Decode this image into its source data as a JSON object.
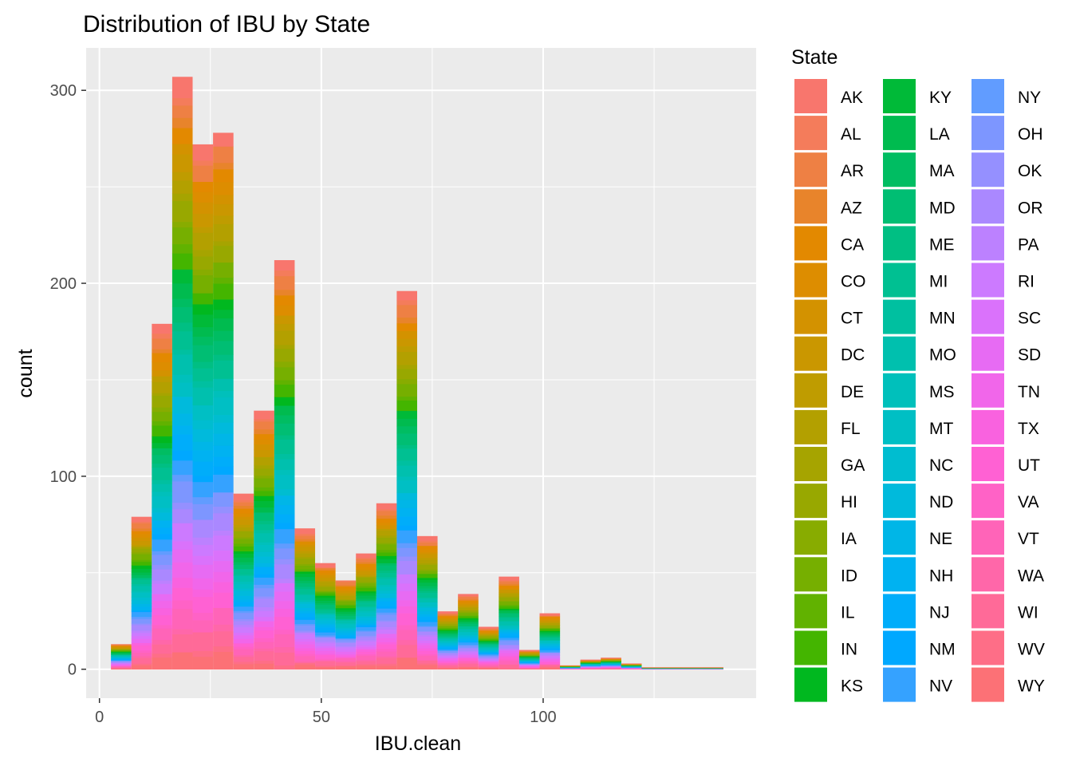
{
  "chart_data": {
    "type": "bar",
    "subtype": "stacked histogram",
    "title": "Distribution of IBU by State",
    "xlabel": "IBU.clean",
    "ylabel": "count",
    "xlim": [
      -3,
      148
    ],
    "ylim": [
      -15,
      322
    ],
    "x_ticks": [
      0,
      50,
      100
    ],
    "y_ticks": [
      0,
      100,
      200,
      300
    ],
    "grid": true,
    "background": "#ebebeb",
    "legend": {
      "title": "State",
      "position": "right",
      "columns": 3
    },
    "bin_width": 4.6,
    "bins": [
      {
        "x0": 2.6,
        "total": 13
      },
      {
        "x0": 7.2,
        "total": 79
      },
      {
        "x0": 11.8,
        "total": 179
      },
      {
        "x0": 16.4,
        "total": 307
      },
      {
        "x0": 21.0,
        "total": 272
      },
      {
        "x0": 25.6,
        "total": 278
      },
      {
        "x0": 30.2,
        "total": 91
      },
      {
        "x0": 34.8,
        "total": 134
      },
      {
        "x0": 39.4,
        "total": 212
      },
      {
        "x0": 44.0,
        "total": 73
      },
      {
        "x0": 48.6,
        "total": 55
      },
      {
        "x0": 53.2,
        "total": 46
      },
      {
        "x0": 57.8,
        "total": 60
      },
      {
        "x0": 62.4,
        "total": 86
      },
      {
        "x0": 67.0,
        "total": 196
      },
      {
        "x0": 71.6,
        "total": 69
      },
      {
        "x0": 76.2,
        "total": 30
      },
      {
        "x0": 80.8,
        "total": 39
      },
      {
        "x0": 85.4,
        "total": 22
      },
      {
        "x0": 90.0,
        "total": 48
      },
      {
        "x0": 94.6,
        "total": 10
      },
      {
        "x0": 99.2,
        "total": 29
      },
      {
        "x0": 103.8,
        "total": 2
      },
      {
        "x0": 108.4,
        "total": 5
      },
      {
        "x0": 113.0,
        "total": 6
      },
      {
        "x0": 117.6,
        "total": 3
      },
      {
        "x0": 122.2,
        "total": 1
      },
      {
        "x0": 126.8,
        "total": 1
      },
      {
        "x0": 131.4,
        "total": 1
      },
      {
        "x0": 136.0,
        "total": 1
      }
    ],
    "series": [
      {
        "name": "AK",
        "color": "#F8766D"
      },
      {
        "name": "AL",
        "color": "#F47C5B"
      },
      {
        "name": "AR",
        "color": "#EE8044"
      },
      {
        "name": "AZ",
        "color": "#E8842B"
      },
      {
        "name": "CA",
        "color": "#E38900"
      },
      {
        "name": "CO",
        "color": "#DD8D00"
      },
      {
        "name": "CT",
        "color": "#D39200"
      },
      {
        "name": "DC",
        "color": "#CA9700"
      },
      {
        "name": "DE",
        "color": "#BF9C00"
      },
      {
        "name": "FL",
        "color": "#B3A000"
      },
      {
        "name": "GA",
        "color": "#A6A400"
      },
      {
        "name": "HI",
        "color": "#98A800"
      },
      {
        "name": "IA",
        "color": "#88AC00"
      },
      {
        "name": "ID",
        "color": "#76AF00"
      },
      {
        "name": "IL",
        "color": "#61B200"
      },
      {
        "name": "IN",
        "color": "#44B500"
      },
      {
        "name": "KS",
        "color": "#00B81F"
      },
      {
        "name": "KY",
        "color": "#00BA38"
      },
      {
        "name": "LA",
        "color": "#00BB4F"
      },
      {
        "name": "MA",
        "color": "#00BD62"
      },
      {
        "name": "MD",
        "color": "#00BE73"
      },
      {
        "name": "ME",
        "color": "#00BF83"
      },
      {
        "name": "MI",
        "color": "#00C092"
      },
      {
        "name": "MN",
        "color": "#00C0A0"
      },
      {
        "name": "MO",
        "color": "#00C0AE"
      },
      {
        "name": "MS",
        "color": "#00C0BB"
      },
      {
        "name": "MT",
        "color": "#00BFC4"
      },
      {
        "name": "NC",
        "color": "#00BDD0"
      },
      {
        "name": "ND",
        "color": "#00BADC"
      },
      {
        "name": "NE",
        "color": "#00B6E7"
      },
      {
        "name": "NH",
        "color": "#00B2F1"
      },
      {
        "name": "NJ",
        "color": "#00ADFA"
      },
      {
        "name": "NM",
        "color": "#00A8FF"
      },
      {
        "name": "NV",
        "color": "#35A2FF"
      },
      {
        "name": "NY",
        "color": "#619CFF"
      },
      {
        "name": "OH",
        "color": "#7D96FF"
      },
      {
        "name": "OK",
        "color": "#9590FF"
      },
      {
        "name": "OR",
        "color": "#AA88FF"
      },
      {
        "name": "PA",
        "color": "#BC81FF"
      },
      {
        "name": "RI",
        "color": "#CC7AFF"
      },
      {
        "name": "SC",
        "color": "#DA72FB"
      },
      {
        "name": "SD",
        "color": "#E76BF3"
      },
      {
        "name": "TN",
        "color": "#F166EA"
      },
      {
        "name": "TX",
        "color": "#F962DF"
      },
      {
        "name": "UT",
        "color": "#FF61D3"
      },
      {
        "name": "VA",
        "color": "#FF62C6"
      },
      {
        "name": "VT",
        "color": "#FF64B8"
      },
      {
        "name": "WA",
        "color": "#FF67A9"
      },
      {
        "name": "WI",
        "color": "#FF6A98"
      },
      {
        "name": "WV",
        "color": "#FE6E87"
      },
      {
        "name": "WY",
        "color": "#FC7176"
      }
    ]
  }
}
